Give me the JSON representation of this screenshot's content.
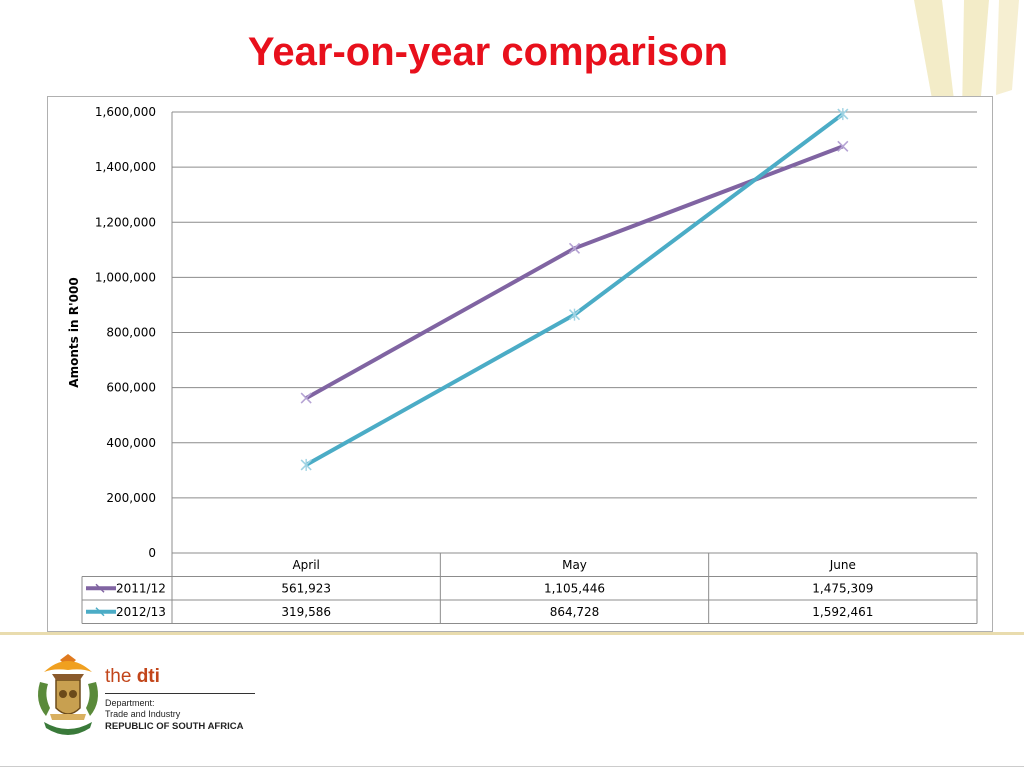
{
  "title": "Year-on-year comparison",
  "chart_data": {
    "type": "line",
    "ylabel": "Amonts in R'000",
    "ylim": [
      0,
      1600000
    ],
    "yticks": [
      "1,600,000",
      "1,400,000",
      "1,200,000",
      "1,000,000",
      "800,000",
      "600,000",
      "400,000",
      "200,000",
      "0"
    ],
    "yticks_values": [
      1600000,
      1400000,
      1200000,
      1000000,
      800000,
      600000,
      400000,
      200000,
      0
    ],
    "categories": [
      "April",
      "May",
      "June"
    ],
    "grid": true,
    "legend": "data-table",
    "series": [
      {
        "name": "2011/12",
        "color": "#8064a2",
        "values": [
          561923,
          1105446,
          1475309
        ],
        "labels": [
          "561,923",
          "1,105,446",
          "1,475,309"
        ]
      },
      {
        "name": "2012/13",
        "color": "#4bacc6",
        "values": [
          319586,
          864728,
          1592461
        ],
        "labels": [
          "319,586",
          "864,728",
          "1,592,461"
        ]
      }
    ]
  },
  "footer": {
    "brand_the": "the ",
    "brand_dti": "dti",
    "line1": "Department:",
    "line2": "Trade and Industry",
    "line3": "REPUBLIC OF SOUTH AFRICA"
  }
}
